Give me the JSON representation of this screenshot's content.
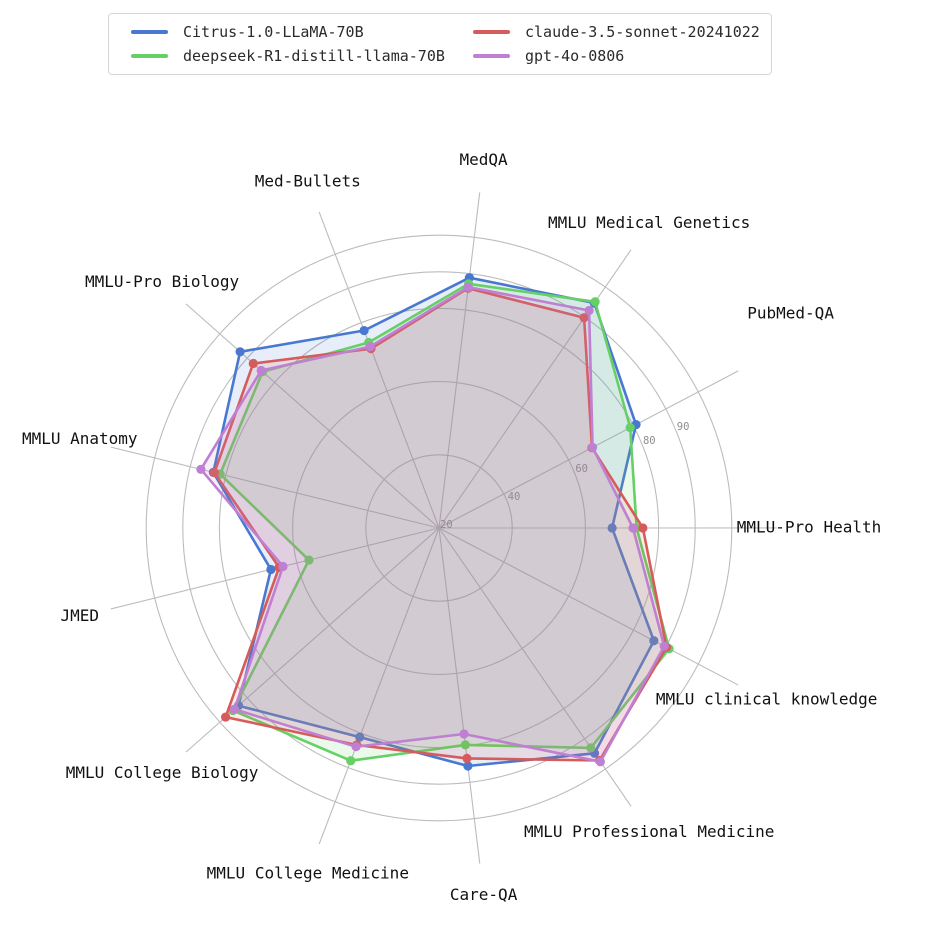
{
  "figure": {
    "background": "#ffffff",
    "grid_color": "#bcbcbc",
    "tick_label_color": "#8f8f8f",
    "category_label_color": "#111111"
  },
  "legend": {
    "items": [
      {
        "label": "Citrus-1.0-LLaMA-70B",
        "color": "#4878d0"
      },
      {
        "label": "deepseek-R1-distill-llama-70B",
        "color": "#66d066"
      },
      {
        "label": "claude-3.5-sonnet-20241022",
        "color": "#d65c5c"
      },
      {
        "label": "gpt-4o-0806",
        "color": "#bf7fd2"
      }
    ]
  },
  "chart_data": {
    "type": "radar",
    "title": "",
    "categories": [
      "MedQA",
      "MMLU Medical Genetics",
      "PubMed-QA",
      "MMLU-Pro Health",
      "MMLU clinical knowledge",
      "MMLU Professional Medicine",
      "Care-QA",
      "MMLU College Medicine",
      "MMLU College Biology",
      "JMED",
      "MMLU Anatomy",
      "MMLU-Pro Biology",
      "Med-Bullets"
    ],
    "series": [
      {
        "name": "Citrus-1.0-LLaMA-70B",
        "color": "#4878d0",
        "values": [
          88.9,
          94.7,
          80.8,
          67.3,
          86.3,
          94.8,
          85.5,
          81.1,
          93.2,
          67.3,
          83.5,
          92.6,
          77.7
        ]
      },
      {
        "name": "deepseek-R1-distill-llama-70B",
        "color": "#66d066",
        "values": [
          87.2,
          95.1,
          79.0,
          74.0,
          91.0,
          93.0,
          79.7,
          88.0,
          95.2,
          56.6,
          81.6,
          84.4,
          74.2
        ]
      },
      {
        "name": "claude-3.5-sonnet-20241022",
        "color": "#d65c5c",
        "values": [
          86.0,
          89.8,
          67.2,
          75.7,
          90.2,
          97.2,
          83.4,
          83.4,
          97.9,
          65.0,
          83.2,
          87.8,
          72.4
        ]
      },
      {
        "name": "gpt-4o-0806",
        "color": "#bf7fd2",
        "values": [
          86.3,
          92.2,
          67.4,
          73.0,
          89.5,
          97.6,
          76.7,
          83.9,
          94.7,
          63.9,
          87.0,
          84.9,
          73.0
        ]
      }
    ],
    "radial_axis": {
      "min": 20,
      "max": 100,
      "tick_labels": [
        20,
        40,
        60,
        80,
        90
      ],
      "grid_circles": [
        40,
        60,
        80,
        90,
        100
      ],
      "tick_label_angle_deg": 22.5
    },
    "start_angle_deg": 83.08,
    "direction": "clockwise",
    "grid": true,
    "fill_opacity": 0.13,
    "legend_position": "top"
  }
}
